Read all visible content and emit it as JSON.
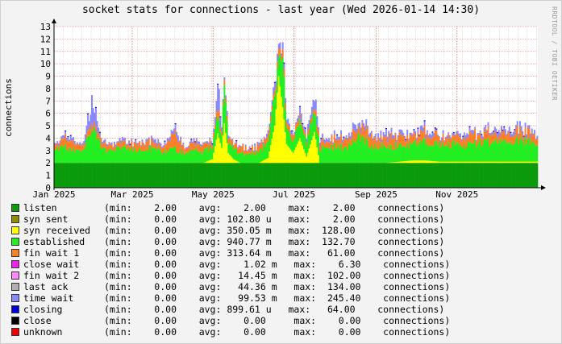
{
  "title": "socket stats for connections - last year (Wed 2026-01-14 14:30)",
  "watermark": "RRDTOOL / TOBI OETIKER",
  "colors": {
    "background": "#f3f3f3",
    "plot_background": "#ffffff",
    "grid_minor": "#e6b4b4",
    "grid_major": "#e07070",
    "axis": "#000000"
  },
  "chart_data": {
    "type": "area",
    "stacked": true,
    "title": "socket stats for connections - last year (Wed 2026-01-14 14:30)",
    "ylabel": "connections",
    "xlabel": "",
    "ylim": [
      0,
      13
    ],
    "y_ticks": [
      0,
      1,
      2,
      3,
      4,
      5,
      6,
      7,
      8,
      9,
      10,
      11,
      12,
      13
    ],
    "x_ticks": [
      "Jan 2025",
      "Mar 2025",
      "May 2025",
      "Jul 2025",
      "Sep 2025",
      "Nov 2025"
    ],
    "x_tick_days": [
      0,
      59,
      120,
      181,
      243,
      304
    ],
    "x_range_days": [
      0,
      365
    ],
    "grid": true,
    "series_order": [
      "listen",
      "syn sent",
      "syn received",
      "established",
      "fin wait 1",
      "close wait",
      "fin wait 2",
      "last ack",
      "time wait",
      "closing",
      "close",
      "unknown"
    ],
    "series": [
      {
        "name": "listen",
        "color": "#0a9b0a",
        "min": "2.00",
        "avg": "2.00",
        "max": "2.00"
      },
      {
        "name": "syn sent",
        "color": "#8e8e00",
        "min": "0.00",
        "avg": "102.80 u",
        "max": "2.00"
      },
      {
        "name": "syn received",
        "color": "#ffff00",
        "min": "0.00",
        "avg": "350.05 m",
        "max": "128.00"
      },
      {
        "name": "established",
        "color": "#22ee22",
        "min": "0.00",
        "avg": "940.77 m",
        "max": "132.70"
      },
      {
        "name": "fin wait 1",
        "color": "#ff7f27",
        "min": "0.00",
        "avg": "313.64 m",
        "max": "61.00"
      },
      {
        "name": "close wait",
        "color": "#ee22ee",
        "min": "0.00",
        "avg": "1.02 m",
        "max": "6.30"
      },
      {
        "name": "fin wait 2",
        "color": "#ff88ff",
        "min": "0.00",
        "avg": "14.45 m",
        "max": "102.00"
      },
      {
        "name": "last ack",
        "color": "#b0b0b0",
        "min": "0.00",
        "avg": "44.36 m",
        "max": "134.00"
      },
      {
        "name": "time wait",
        "color": "#8888ff",
        "min": "0.00",
        "avg": "99.53 m",
        "max": "245.40"
      },
      {
        "name": "closing",
        "color": "#0000dd",
        "min": "0.00",
        "avg": "899.61 u",
        "max": "64.00"
      },
      {
        "name": "close",
        "color": "#000000",
        "min": "0.00",
        "avg": "0.00",
        "max": "0.00"
      },
      {
        "name": "unknown",
        "color": "#ee0000",
        "min": "0.00",
        "avg": "0.00",
        "max": "0.00"
      }
    ],
    "samples": [
      {
        "day": 0,
        "syn_received": 0,
        "established": 1.0,
        "fin_wait_1": 0.4,
        "time_wait": 0.1
      },
      {
        "day": 7,
        "syn_received": 0,
        "established": 1.3,
        "fin_wait_1": 0.6,
        "time_wait": 0.2
      },
      {
        "day": 10,
        "syn_received": 0,
        "established": 1.1,
        "fin_wait_1": 0.7,
        "time_wait": 0.3
      },
      {
        "day": 14,
        "syn_received": 0,
        "established": 1.0,
        "fin_wait_1": 0.6,
        "time_wait": 0.2
      },
      {
        "day": 21,
        "syn_received": 0,
        "established": 0.9,
        "fin_wait_1": 0.4,
        "time_wait": 0.1
      },
      {
        "day": 28,
        "syn_received": 0,
        "established": 3.0,
        "fin_wait_1": 0.6,
        "time_wait": 1.6
      },
      {
        "day": 35,
        "syn_received": 0,
        "established": 1.2,
        "fin_wait_1": 0.5,
        "time_wait": 0.2
      },
      {
        "day": 42,
        "syn_received": 0,
        "established": 1.0,
        "fin_wait_1": 0.4,
        "time_wait": 0.1
      },
      {
        "day": 49,
        "syn_received": 0,
        "established": 1.3,
        "fin_wait_1": 0.5,
        "time_wait": 0.2
      },
      {
        "day": 56,
        "syn_received": 0,
        "established": 1.1,
        "fin_wait_1": 0.5,
        "time_wait": 0.2
      },
      {
        "day": 63,
        "syn_received": 0,
        "established": 1.0,
        "fin_wait_1": 0.5,
        "time_wait": 0.1
      },
      {
        "day": 70,
        "syn_received": 0,
        "established": 1.2,
        "fin_wait_1": 0.6,
        "time_wait": 0.2
      },
      {
        "day": 77,
        "syn_received": 0,
        "established": 1.0,
        "fin_wait_1": 0.4,
        "time_wait": 0.2
      },
      {
        "day": 84,
        "syn_received": 0,
        "established": 0.9,
        "fin_wait_1": 0.6,
        "time_wait": 0.2
      },
      {
        "day": 91,
        "syn_received": 0,
        "established": 1.1,
        "fin_wait_1": 1.0,
        "time_wait": 0.4
      },
      {
        "day": 98,
        "syn_received": 0,
        "established": 0.8,
        "fin_wait_1": 0.4,
        "time_wait": 0.1
      },
      {
        "day": 105,
        "syn_received": 0,
        "established": 1.0,
        "fin_wait_1": 0.5,
        "time_wait": 0.2
      },
      {
        "day": 112,
        "syn_received": 0,
        "established": 0.9,
        "fin_wait_1": 0.5,
        "time_wait": 0.1
      },
      {
        "day": 119,
        "syn_received": 0.3,
        "established": 1.0,
        "fin_wait_1": 0.4,
        "time_wait": 0.2
      },
      {
        "day": 123,
        "syn_received": 2.4,
        "established": 1.4,
        "fin_wait_1": 0.6,
        "time_wait": 1.5
      },
      {
        "day": 126,
        "syn_received": 1.2,
        "established": 1.0,
        "fin_wait_1": 0.5,
        "time_wait": 0.4
      },
      {
        "day": 128,
        "syn_received": 3.2,
        "established": 3.2,
        "fin_wait_1": 0.3,
        "time_wait": 0.4
      },
      {
        "day": 131,
        "syn_received": 0.8,
        "established": 0.9,
        "fin_wait_1": 0.4,
        "time_wait": 0.2
      },
      {
        "day": 135,
        "syn_received": 0.3,
        "established": 0.8,
        "fin_wait_1": 0.4,
        "time_wait": 0.1
      },
      {
        "day": 140,
        "syn_received": 0,
        "established": 0.8,
        "fin_wait_1": 0.5,
        "time_wait": 0.1
      },
      {
        "day": 147,
        "syn_received": 0,
        "established": 0.7,
        "fin_wait_1": 0.4,
        "time_wait": 0.1
      },
      {
        "day": 154,
        "syn_received": 0,
        "established": 0.9,
        "fin_wait_1": 0.5,
        "time_wait": 0.2
      },
      {
        "day": 161,
        "syn_received": 0.4,
        "established": 1.2,
        "fin_wait_1": 0.6,
        "time_wait": 0.2
      },
      {
        "day": 166,
        "syn_received": 3.0,
        "established": 2.3,
        "fin_wait_1": 0.6,
        "time_wait": 0.4
      },
      {
        "day": 169,
        "syn_received": 7.0,
        "established": 1.4,
        "fin_wait_1": 0.4,
        "time_wait": 0.4
      },
      {
        "day": 172,
        "syn_received": 4.5,
        "established": 4.1,
        "fin_wait_1": 0.6,
        "time_wait": 0.6
      },
      {
        "day": 175,
        "syn_received": 1.5,
        "established": 1.4,
        "fin_wait_1": 0.5,
        "time_wait": 0.3
      },
      {
        "day": 180,
        "syn_received": 0.8,
        "established": 1.0,
        "fin_wait_1": 0.4,
        "time_wait": 0.2
      },
      {
        "day": 185,
        "syn_received": 2.0,
        "established": 1.4,
        "fin_wait_1": 0.4,
        "time_wait": 0.5
      },
      {
        "day": 190,
        "syn_received": 0.5,
        "established": 1.0,
        "fin_wait_1": 0.4,
        "time_wait": 0.2
      },
      {
        "day": 196,
        "syn_received": 2.5,
        "established": 1.8,
        "fin_wait_1": 0.3,
        "time_wait": 1.2
      },
      {
        "day": 200,
        "syn_received": 0,
        "established": 1.1,
        "fin_wait_1": 0.6,
        "time_wait": 0.2
      },
      {
        "day": 210,
        "syn_received": 0,
        "established": 1.3,
        "fin_wait_1": 0.6,
        "time_wait": 0.3
      },
      {
        "day": 220,
        "syn_received": 0,
        "established": 1.2,
        "fin_wait_1": 0.6,
        "time_wait": 0.2
      },
      {
        "day": 229,
        "syn_received": 0,
        "established": 2.0,
        "fin_wait_1": 0.8,
        "time_wait": 0.5
      },
      {
        "day": 240,
        "syn_received": 0,
        "established": 1.4,
        "fin_wait_1": 0.8,
        "time_wait": 0.2
      },
      {
        "day": 250,
        "syn_received": 0,
        "established": 1.3,
        "fin_wait_1": 0.7,
        "time_wait": 0.4
      },
      {
        "day": 260,
        "syn_received": 0.1,
        "established": 1.3,
        "fin_wait_1": 0.8,
        "time_wait": 0.3
      },
      {
        "day": 270,
        "syn_received": 0.2,
        "established": 1.3,
        "fin_wait_1": 0.6,
        "time_wait": 0.3
      },
      {
        "day": 280,
        "syn_received": 0.2,
        "established": 1.5,
        "fin_wait_1": 0.8,
        "time_wait": 0.3
      },
      {
        "day": 290,
        "syn_received": 0.1,
        "established": 1.3,
        "fin_wait_1": 0.6,
        "time_wait": 0.2
      },
      {
        "day": 300,
        "syn_received": 0.1,
        "established": 1.4,
        "fin_wait_1": 0.6,
        "time_wait": 0.2
      },
      {
        "day": 310,
        "syn_received": 0.1,
        "established": 1.3,
        "fin_wait_1": 0.6,
        "time_wait": 0.3
      },
      {
        "day": 320,
        "syn_received": 0.1,
        "established": 1.5,
        "fin_wait_1": 0.7,
        "time_wait": 0.2
      },
      {
        "day": 330,
        "syn_received": 0.1,
        "established": 1.6,
        "fin_wait_1": 0.7,
        "time_wait": 0.3
      },
      {
        "day": 340,
        "syn_received": 0.1,
        "established": 1.5,
        "fin_wait_1": 0.6,
        "time_wait": 0.3
      },
      {
        "day": 350,
        "syn_received": 0.1,
        "established": 1.7,
        "fin_wait_1": 0.8,
        "time_wait": 0.3
      },
      {
        "day": 358,
        "syn_received": 0.1,
        "established": 1.5,
        "fin_wait_1": 0.7,
        "time_wait": 0.3
      },
      {
        "day": 365,
        "syn_received": 0.1,
        "established": 1.4,
        "fin_wait_1": 0.6,
        "time_wait": 0.2
      }
    ]
  },
  "legend": [
    {
      "name": "listen",
      "stats": "(min:    2.00    avg:    2.00    max:    2.00    connections)"
    },
    {
      "name": "syn sent",
      "stats": "(min:    0.00    avg: 102.80 u   max:    2.00    connections)"
    },
    {
      "name": "syn received",
      "stats": "(min:    0.00    avg: 350.05 m   max:  128.00    connections)"
    },
    {
      "name": "established",
      "stats": "(min:    0.00    avg: 940.77 m   max:  132.70    connections)"
    },
    {
      "name": "fin wait 1",
      "stats": "(min:    0.00    avg: 313.64 m   max:   61.00    connections)"
    },
    {
      "name": "close wait",
      "stats": "(min:    0.00    avg:    1.02 m   max:    6.30    connections)"
    },
    {
      "name": "fin wait 2",
      "stats": "(min:    0.00    avg:   14.45 m   max:  102.00    connections)"
    },
    {
      "name": "last ack",
      "stats": "(min:    0.00    avg:   44.36 m   max:  134.00    connections)"
    },
    {
      "name": "time wait",
      "stats": "(min:    0.00    avg:   99.53 m   max:  245.40    connections)"
    },
    {
      "name": "closing",
      "stats": "(min:    0.00    avg: 899.61 u   max:   64.00    connections)"
    },
    {
      "name": "close",
      "stats": "(min:    0.00    avg:    0.00     max:    0.00    connections)"
    },
    {
      "name": "unknown",
      "stats": "(min:    0.00    avg:    0.00     max:    0.00    connections)"
    }
  ]
}
